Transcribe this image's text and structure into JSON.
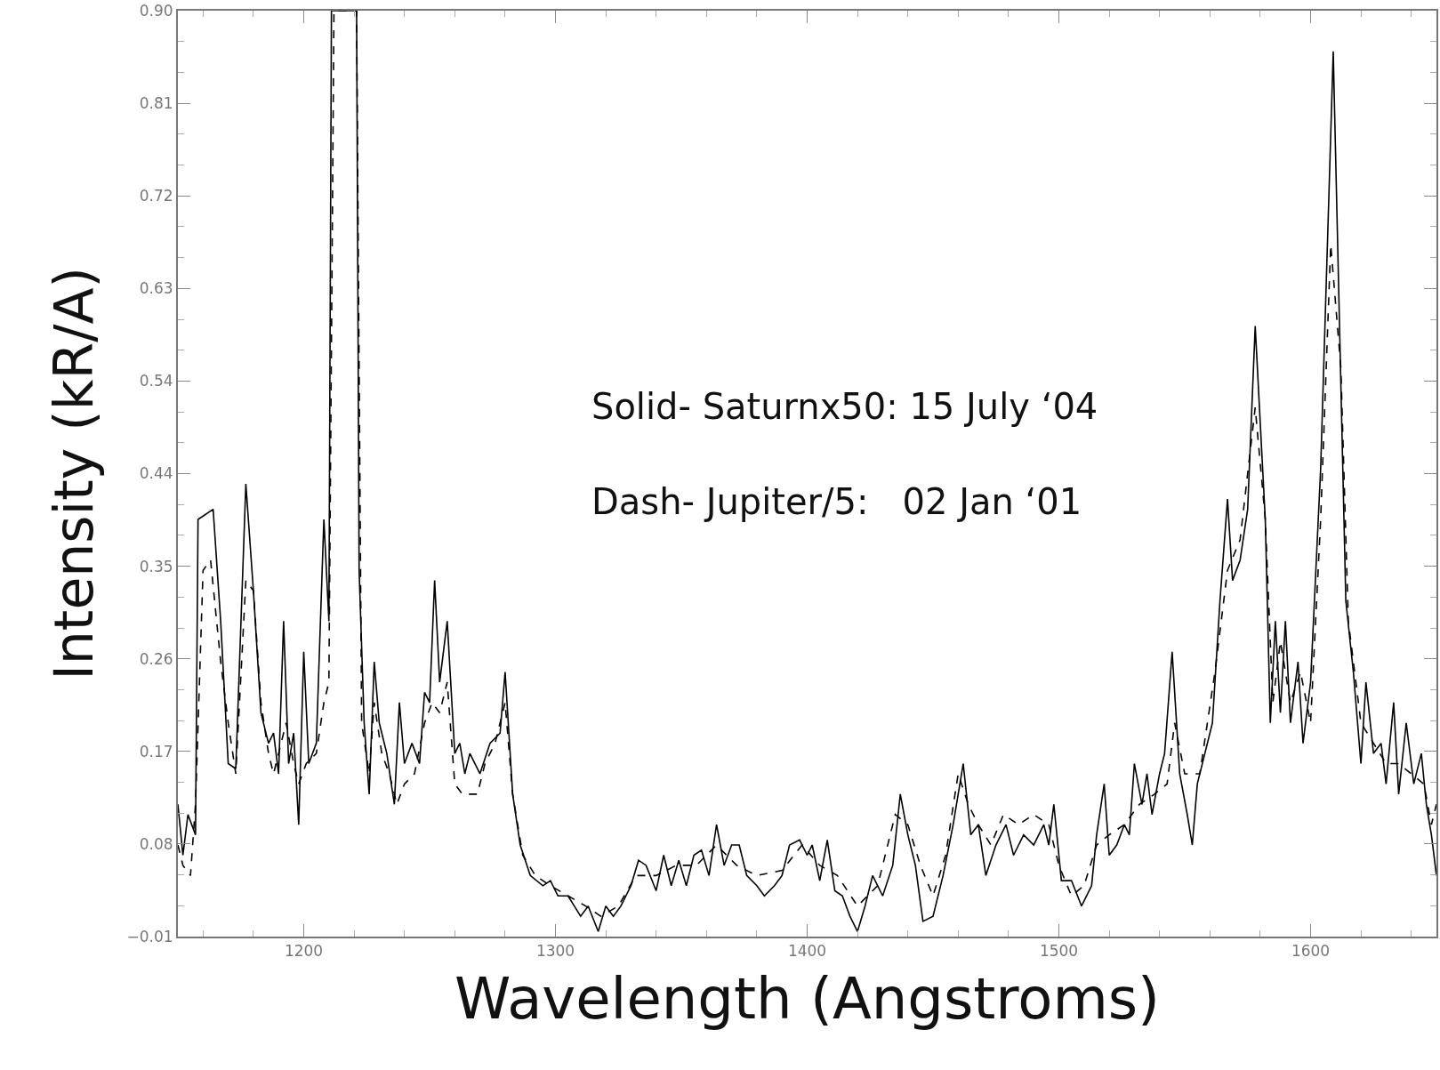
{
  "chart_data": {
    "type": "line",
    "xlabel": "Wavelength (Angstroms)",
    "ylabel": "Intensity (kR/A)",
    "xlim": [
      1150,
      1650
    ],
    "xticks": [
      1200,
      1300,
      1400,
      1500,
      1600
    ],
    "ylim": [
      -0.01,
      0.9
    ],
    "yticks": [
      {
        "value": -0.01,
        "label": "−0.01"
      },
      {
        "value": 0.081,
        "label": "0.08"
      },
      {
        "value": 0.172,
        "label": "0.17"
      },
      {
        "value": 0.263,
        "label": "0.26"
      },
      {
        "value": 0.354,
        "label": "0.35"
      },
      {
        "value": 0.445,
        "label": "0.44"
      },
      {
        "value": 0.536,
        "label": "0.54"
      },
      {
        "value": 0.627,
        "label": "0.63"
      },
      {
        "value": 0.718,
        "label": "0.72"
      },
      {
        "value": 0.9,
        "label": "0.90"
      },
      {
        "value": 0.809,
        "label": "0.81"
      }
    ],
    "grid": false,
    "marker": "none",
    "annotations": [
      "Solid- Saturnx50: 15 July ‘04",
      "Dash- Jupiter/5:   02 Jan ‘01"
    ],
    "series": [
      {
        "color": "#000000",
        "line_style": "solid",
        "x": [
          1150,
          1152,
          1154,
          1157,
          1158,
          1164,
          1167,
          1170,
          1173,
          1177,
          1180,
          1183,
          1186,
          1188,
          1190,
          1192,
          1194,
          1196,
          1198,
          1200,
          1202,
          1205,
          1208,
          1210,
          1211,
          1221,
          1222,
          1224,
          1226,
          1228,
          1230,
          1233,
          1236,
          1238,
          1240,
          1243,
          1246,
          1248,
          1250,
          1252,
          1254,
          1257,
          1260,
          1262,
          1264,
          1266,
          1270,
          1274,
          1278,
          1280,
          1283,
          1286,
          1290,
          1295,
          1298,
          1301,
          1305,
          1310,
          1313,
          1317,
          1320,
          1323,
          1326,
          1330,
          1333,
          1336,
          1340,
          1343,
          1346,
          1349,
          1352,
          1355,
          1358,
          1361,
          1364,
          1367,
          1370,
          1373,
          1376,
          1380,
          1383,
          1387,
          1390,
          1393,
          1397,
          1400,
          1402,
          1405,
          1408,
          1411,
          1414,
          1417,
          1420,
          1423,
          1426,
          1430,
          1434,
          1437,
          1440,
          1443,
          1446,
          1450,
          1454,
          1458,
          1462,
          1465,
          1468,
          1471,
          1475,
          1479,
          1482,
          1486,
          1490,
          1494,
          1496,
          1498,
          1501,
          1505,
          1509,
          1513,
          1515,
          1518,
          1520,
          1523,
          1526,
          1528,
          1530,
          1533,
          1535,
          1537,
          1540,
          1542,
          1545,
          1548,
          1551,
          1553,
          1555,
          1558,
          1561,
          1564,
          1567,
          1569,
          1572,
          1575,
          1578,
          1582,
          1584,
          1586,
          1588,
          1590,
          1592,
          1595,
          1597,
          1600,
          1604,
          1609,
          1614,
          1617,
          1620,
          1622,
          1625,
          1628,
          1630,
          1633,
          1635,
          1638,
          1641,
          1644,
          1646,
          1648,
          1650
        ],
        "values": [
          0.12,
          0.07,
          0.11,
          0.09,
          0.4,
          0.41,
          0.3,
          0.16,
          0.155,
          0.435,
          0.33,
          0.21,
          0.18,
          0.19,
          0.15,
          0.3,
          0.16,
          0.19,
          0.1,
          0.27,
          0.16,
          0.18,
          0.4,
          0.3,
          0.9,
          0.9,
          0.35,
          0.2,
          0.13,
          0.26,
          0.2,
          0.17,
          0.12,
          0.22,
          0.16,
          0.18,
          0.16,
          0.23,
          0.22,
          0.34,
          0.24,
          0.3,
          0.17,
          0.18,
          0.15,
          0.17,
          0.15,
          0.18,
          0.19,
          0.25,
          0.13,
          0.08,
          0.05,
          0.04,
          0.045,
          0.03,
          0.03,
          0.01,
          0.02,
          -0.005,
          0.02,
          0.01,
          0.02,
          0.04,
          0.065,
          0.06,
          0.035,
          0.07,
          0.04,
          0.065,
          0.04,
          0.07,
          0.075,
          0.05,
          0.1,
          0.06,
          0.08,
          0.08,
          0.05,
          0.04,
          0.03,
          0.04,
          0.05,
          0.08,
          0.085,
          0.07,
          0.08,
          0.045,
          0.085,
          0.035,
          0.03,
          0.01,
          -0.005,
          0.02,
          0.05,
          0.03,
          0.06,
          0.13,
          0.09,
          0.06,
          0.005,
          0.01,
          0.05,
          0.1,
          0.16,
          0.09,
          0.1,
          0.05,
          0.08,
          0.1,
          0.07,
          0.09,
          0.08,
          0.1,
          0.08,
          0.12,
          0.045,
          0.045,
          0.02,
          0.04,
          0.09,
          0.14,
          0.07,
          0.08,
          0.1,
          0.09,
          0.16,
          0.12,
          0.15,
          0.11,
          0.15,
          0.17,
          0.27,
          0.15,
          0.11,
          0.08,
          0.14,
          0.17,
          0.2,
          0.32,
          0.42,
          0.34,
          0.36,
          0.41,
          0.59,
          0.4,
          0.2,
          0.3,
          0.21,
          0.3,
          0.2,
          0.26,
          0.18,
          0.24,
          0.45,
          0.86,
          0.32,
          0.25,
          0.16,
          0.24,
          0.17,
          0.18,
          0.14,
          0.22,
          0.13,
          0.2,
          0.14,
          0.17,
          0.12,
          0.09,
          0.05
        ]
      },
      {
        "color": "#000000",
        "line_style": "dashed",
        "x": [
          1150,
          1152,
          1155,
          1157,
          1160,
          1163,
          1167,
          1170,
          1173,
          1177,
          1180,
          1183,
          1186,
          1188,
          1190,
          1193,
          1196,
          1198,
          1201,
          1205,
          1208,
          1210,
          1212,
          1221,
          1223,
          1226,
          1228,
          1231,
          1234,
          1237,
          1240,
          1244,
          1248,
          1251,
          1254,
          1257,
          1260,
          1263,
          1266,
          1269,
          1272,
          1276,
          1280,
          1283,
          1287,
          1292,
          1298,
          1305,
          1312,
          1318,
          1325,
          1332,
          1340,
          1348,
          1356,
          1364,
          1372,
          1380,
          1390,
          1398,
          1405,
          1412,
          1420,
          1428,
          1435,
          1440,
          1445,
          1450,
          1455,
          1460,
          1464,
          1468,
          1473,
          1478,
          1484,
          1490,
          1496,
          1500,
          1505,
          1510,
          1515,
          1520,
          1526,
          1532,
          1538,
          1543,
          1546,
          1550,
          1556,
          1562,
          1567,
          1572,
          1578,
          1582,
          1585,
          1588,
          1592,
          1596,
          1600,
          1604,
          1608,
          1612,
          1615,
          1620,
          1625,
          1630,
          1635,
          1640,
          1645,
          1648,
          1650
        ],
        "values": [
          0.08,
          0.06,
          0.05,
          0.12,
          0.35,
          0.36,
          0.26,
          0.2,
          0.15,
          0.34,
          0.33,
          0.22,
          0.17,
          0.15,
          0.17,
          0.2,
          0.16,
          0.14,
          0.16,
          0.17,
          0.22,
          0.24,
          0.9,
          0.9,
          0.2,
          0.15,
          0.22,
          0.17,
          0.15,
          0.12,
          0.14,
          0.15,
          0.2,
          0.22,
          0.21,
          0.24,
          0.14,
          0.13,
          0.13,
          0.13,
          0.16,
          0.18,
          0.22,
          0.13,
          0.07,
          0.05,
          0.04,
          0.03,
          0.02,
          0.01,
          0.02,
          0.05,
          0.05,
          0.06,
          0.06,
          0.08,
          0.06,
          0.05,
          0.055,
          0.08,
          0.06,
          0.05,
          0.02,
          0.04,
          0.11,
          0.1,
          0.06,
          0.03,
          0.07,
          0.15,
          0.12,
          0.1,
          0.08,
          0.11,
          0.1,
          0.11,
          0.1,
          0.06,
          0.03,
          0.04,
          0.08,
          0.09,
          0.1,
          0.12,
          0.13,
          0.14,
          0.2,
          0.15,
          0.15,
          0.25,
          0.35,
          0.38,
          0.51,
          0.4,
          0.22,
          0.28,
          0.22,
          0.25,
          0.2,
          0.4,
          0.67,
          0.55,
          0.3,
          0.2,
          0.18,
          0.16,
          0.16,
          0.15,
          0.14,
          0.1,
          0.12
        ]
      }
    ]
  }
}
